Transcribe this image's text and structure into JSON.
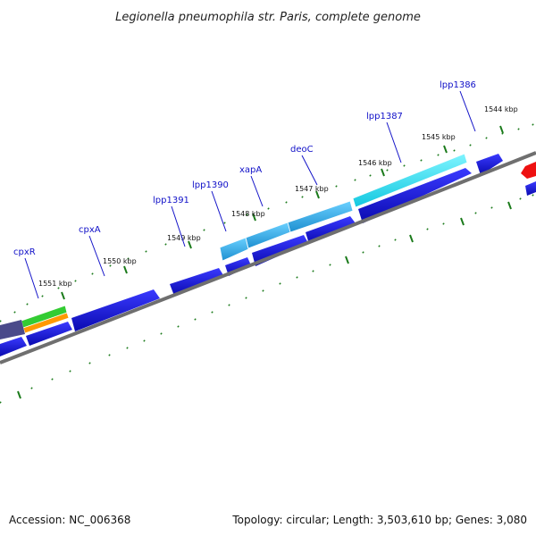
{
  "title": "Legionella pneumophila str. Paris, complete genome",
  "footer": {
    "accession": "Accession: NC_006368",
    "summary": "Topology: circular; Length: 3,503,610 bp; Genes: 3,080"
  },
  "ticks": [
    {
      "label": "1544 kbp"
    },
    {
      "label": "1545 kbp"
    },
    {
      "label": "1546 kbp"
    },
    {
      "label": "1547 kbp"
    },
    {
      "label": "1548 kbp"
    },
    {
      "label": "1549 kbp"
    },
    {
      "label": "1550 kbp"
    },
    {
      "label": "1551 kbp"
    }
  ],
  "gene_labels": [
    {
      "name": "lpp1386"
    },
    {
      "name": "lpp1387"
    },
    {
      "name": "deoC"
    },
    {
      "name": "xapA"
    },
    {
      "name": "lpp1390"
    },
    {
      "name": "lpp1391"
    },
    {
      "name": "cpxA"
    },
    {
      "name": "cpxR"
    }
  ],
  "colors": {
    "forward_strand": "#1a1ae0",
    "reverse_strand": "#0000d0",
    "highlight_cyan": "#22e6f0",
    "highlight_sky": "#33b6ee",
    "highlight_green": "#33cc33",
    "highlight_orange": "#ff9900",
    "highlight_purple": "#4a4a8a",
    "highlight_red": "#ee1111",
    "backbone": "#777777",
    "tick_marks": "#1a7a1a"
  }
}
